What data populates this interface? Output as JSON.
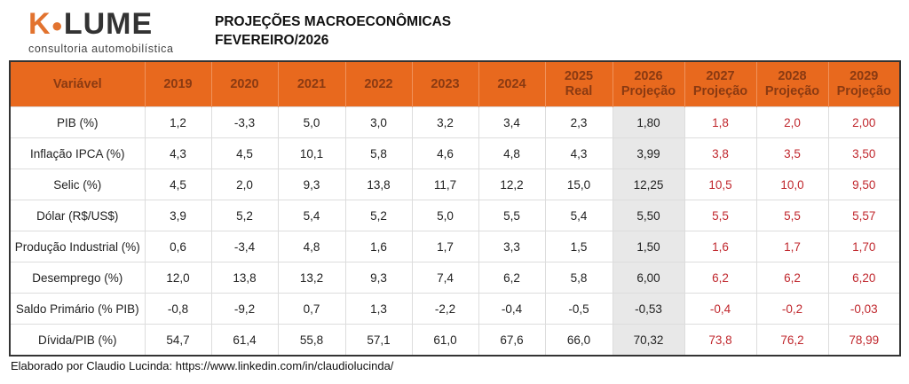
{
  "logo": {
    "mark_k": "K",
    "mark_rest": "LUME",
    "subtitle": "consultoria automobilística"
  },
  "title": {
    "line1": "PROJEÇÕES MACROECONÔMICAS",
    "line2": "FEVEREIRO/2026"
  },
  "colors": {
    "header_bg": "#E8691E",
    "projection_text": "#C0272D",
    "highlight_col": "#E8E8E8"
  },
  "table": {
    "headers": [
      {
        "l1": "Variável",
        "l2": ""
      },
      {
        "l1": "2019",
        "l2": ""
      },
      {
        "l1": "2020",
        "l2": ""
      },
      {
        "l1": "2021",
        "l2": ""
      },
      {
        "l1": "2022",
        "l2": ""
      },
      {
        "l1": "2023",
        "l2": ""
      },
      {
        "l1": "2024",
        "l2": ""
      },
      {
        "l1": "2025",
        "l2": "Real"
      },
      {
        "l1": "2026",
        "l2": "Projeção"
      },
      {
        "l1": "2027",
        "l2": "Projeção"
      },
      {
        "l1": "2028",
        "l2": "Projeção"
      },
      {
        "l1": "2029",
        "l2": "Projeção"
      }
    ],
    "rows": [
      [
        "PIB (%)",
        "1,2",
        "-3,3",
        "5,0",
        "3,0",
        "3,2",
        "3,4",
        "2,3",
        "1,80",
        "1,8",
        "2,0",
        "2,00"
      ],
      [
        "Inflação IPCA (%)",
        "4,3",
        "4,5",
        "10,1",
        "5,8",
        "4,6",
        "4,8",
        "4,3",
        "3,99",
        "3,8",
        "3,5",
        "3,50"
      ],
      [
        "Selic (%)",
        "4,5",
        "2,0",
        "9,3",
        "13,8",
        "11,7",
        "12,2",
        "15,0",
        "12,25",
        "10,5",
        "10,0",
        "9,50"
      ],
      [
        "Dólar (R$/US$)",
        "3,9",
        "5,2",
        "5,4",
        "5,2",
        "5,0",
        "5,5",
        "5,4",
        "5,50",
        "5,5",
        "5,5",
        "5,57"
      ],
      [
        "Produção Industrial (%)",
        "0,6",
        "-3,4",
        "4,8",
        "1,6",
        "1,7",
        "3,3",
        "1,5",
        "1,50",
        "1,6",
        "1,7",
        "1,70"
      ],
      [
        "Desemprego (%)",
        "12,0",
        "13,8",
        "13,2",
        "9,3",
        "7,4",
        "6,2",
        "5,8",
        "6,00",
        "6,2",
        "6,2",
        "6,20"
      ],
      [
        "Saldo Primário (% PIB)",
        "-0,8",
        "-9,2",
        "0,7",
        "1,3",
        "-2,2",
        "-0,4",
        "-0,5",
        "-0,53",
        "-0,4",
        "-0,2",
        "-0,03"
      ],
      [
        "Dívida/PIB (%)",
        "54,7",
        "61,4",
        "55,8",
        "57,1",
        "61,0",
        "67,6",
        "66,0",
        "70,32",
        "73,8",
        "76,2",
        "78,99"
      ]
    ]
  },
  "footer": "Elaborado por Claudio Lucinda: https://www.linkedin.com/in/claudiolucinda/"
}
